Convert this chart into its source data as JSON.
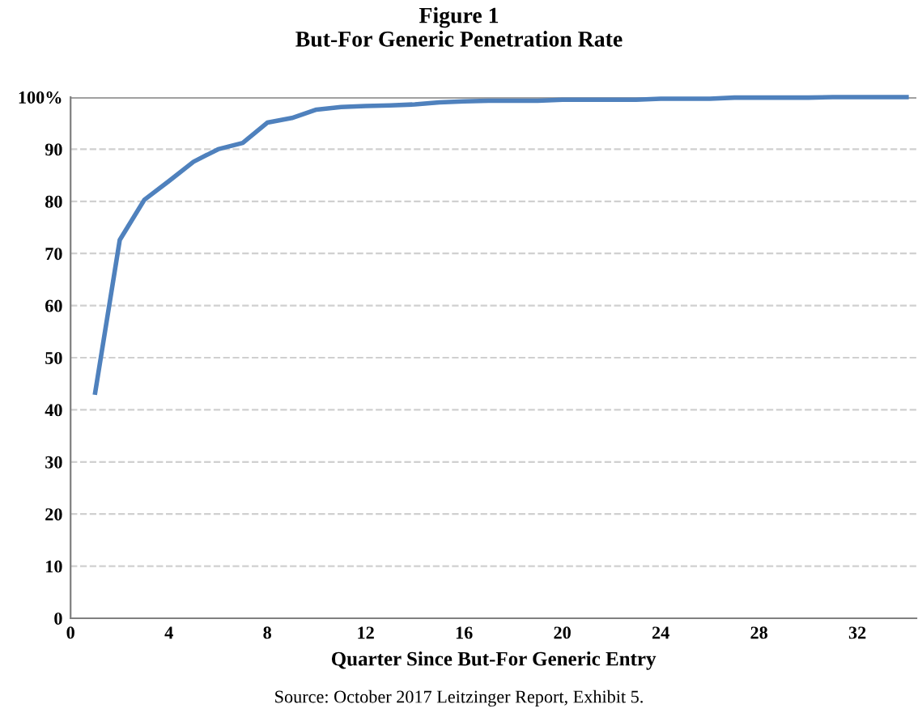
{
  "chart_data": {
    "type": "line",
    "title": "Figure 1\nBut-For Generic Penetration Rate",
    "xlabel": "Quarter Since But-For Generic Entry",
    "annotations": [
      "Source: October 2017 Leitzinger Report, Exhibit 5."
    ],
    "x": [
      1,
      2,
      3,
      4,
      5,
      6,
      7,
      8,
      9,
      10,
      11,
      12,
      13,
      14,
      15,
      16,
      17,
      18,
      19,
      20,
      21,
      22,
      23,
      24,
      25,
      26,
      27,
      28,
      29,
      30,
      31,
      32,
      33,
      34
    ],
    "series": [
      {
        "color": "#4f81bd",
        "values": [
          43.3,
          72.6,
          80.3,
          83.9,
          87.6,
          90.0,
          91.2,
          95.1,
          96.0,
          97.6,
          98.1,
          98.3,
          98.4,
          98.6,
          99.0,
          99.2,
          99.3,
          99.3,
          99.3,
          99.5,
          99.5,
          99.5,
          99.5,
          99.7,
          99.7,
          99.7,
          99.9,
          99.9,
          99.9,
          99.9,
          100,
          100,
          100,
          100
        ]
      }
    ],
    "xlim": [
      0,
      34.4
    ],
    "xticks": [
      0,
      4,
      8,
      12,
      16,
      20,
      24,
      28,
      32
    ],
    "ylim": [
      0,
      100
    ],
    "yticks": [
      0,
      10,
      20,
      30,
      40,
      50,
      60,
      70,
      80,
      90,
      {
        "value": 100,
        "label": "100%"
      }
    ],
    "grid": "y",
    "legend": false,
    "marker": "none",
    "line_style": "solid"
  }
}
